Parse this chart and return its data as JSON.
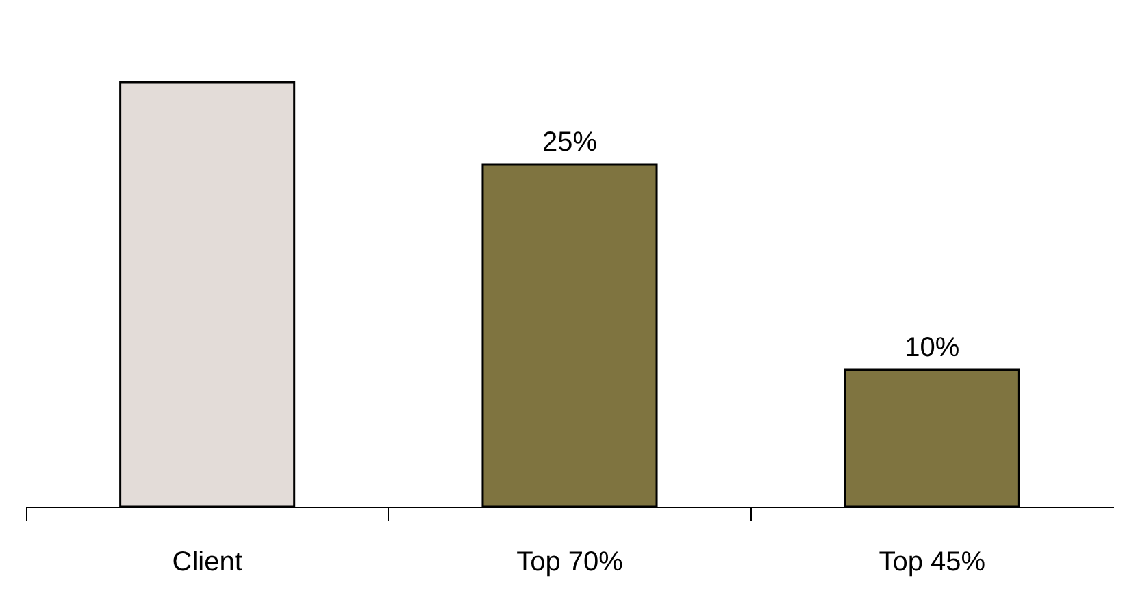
{
  "chart_data": {
    "type": "bar",
    "categories": [
      "Client",
      "Top 70%",
      "Top 45%"
    ],
    "values": [
      31,
      25,
      10
    ],
    "colors": [
      "#e3dcd8",
      "#7f7440",
      "#7f7440"
    ],
    "value_labels": [
      null,
      "25%",
      "10%"
    ]
  }
}
